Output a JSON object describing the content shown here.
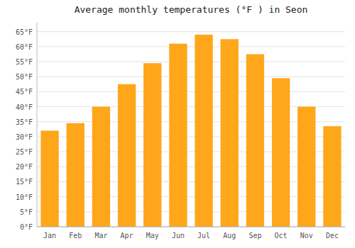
{
  "chart_data": {
    "type": "bar",
    "title": "Average monthly temperatures (°F ) in Seon",
    "categories": [
      "Jan",
      "Feb",
      "Mar",
      "Apr",
      "May",
      "Jun",
      "Jul",
      "Aug",
      "Sep",
      "Oct",
      "Nov",
      "Dec"
    ],
    "values": [
      32,
      34.5,
      40,
      47.5,
      54.5,
      61,
      64,
      62.5,
      57.5,
      49.5,
      40,
      33.5
    ],
    "color": "#FFA61A",
    "ylim": [
      0,
      68
    ],
    "yticks": [
      {
        "value": 0,
        "label": "0°F"
      },
      {
        "value": 5,
        "label": "5°F"
      },
      {
        "value": 10,
        "label": "10°F"
      },
      {
        "value": 15,
        "label": "15°F"
      },
      {
        "value": 20,
        "label": "20°F"
      },
      {
        "value": 25,
        "label": "25°F"
      },
      {
        "value": 30,
        "label": "30°F"
      },
      {
        "value": 35,
        "label": "35°F"
      },
      {
        "value": 40,
        "label": "40°F"
      },
      {
        "value": 45,
        "label": "45°F"
      },
      {
        "value": 50,
        "label": "50°F"
      },
      {
        "value": 55,
        "label": "55°F"
      },
      {
        "value": 60,
        "label": "60°F"
      },
      {
        "value": 65,
        "label": "65°F"
      }
    ],
    "grid": true
  }
}
